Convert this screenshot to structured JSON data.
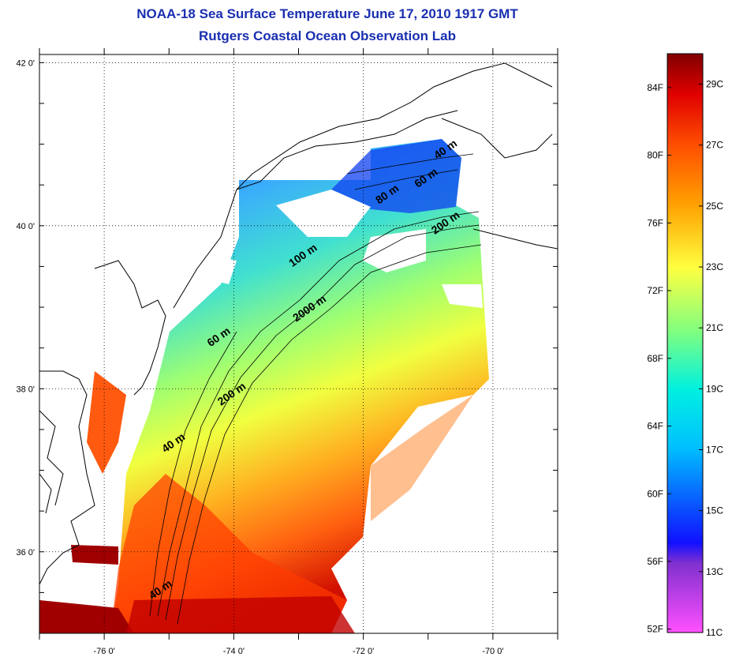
{
  "header": {
    "title": "NOAA-18 Sea Surface Temperature June 17, 2010 1917 GMT",
    "subtitle": "Rutgers Coastal Ocean Observation Lab"
  },
  "map": {
    "lat_ticks": [
      {
        "value": 42,
        "label": "42 0'"
      },
      {
        "value": 40,
        "label": "40 0'"
      },
      {
        "value": 38,
        "label": "38 0'"
      },
      {
        "value": 36,
        "label": "36 0'"
      }
    ],
    "lon_ticks": [
      {
        "value": -76,
        "label": "-76 0'"
      },
      {
        "value": -74,
        "label": "-74 0'"
      },
      {
        "value": -72,
        "label": "-72 0'"
      },
      {
        "value": -70,
        "label": "-70 0'"
      }
    ],
    "lat_range": [
      35,
      42.1
    ],
    "lon_range": [
      -77,
      -69
    ],
    "isobath_labels": [
      {
        "text": "40 m",
        "lon": -70.7,
        "lat": 40.9
      },
      {
        "text": "60 m",
        "lon": -71.0,
        "lat": 40.55
      },
      {
        "text": "80 m",
        "lon": -71.6,
        "lat": 40.35
      },
      {
        "text": "200 m",
        "lon": -70.7,
        "lat": 40.0
      },
      {
        "text": "100 m",
        "lon": -72.9,
        "lat": 39.6
      },
      {
        "text": "2000 m",
        "lon": -72.8,
        "lat": 38.95
      },
      {
        "text": "60 m",
        "lon": -74.2,
        "lat": 38.6
      },
      {
        "text": "200 m",
        "lon": -74.0,
        "lat": 37.9
      },
      {
        "text": "40 m",
        "lon": -74.9,
        "lat": 37.3
      },
      {
        "text": "40 m",
        "lon": -75.1,
        "lat": 35.5
      }
    ]
  },
  "colorbar": {
    "fahrenheit_labels": [
      "84F",
      "80F",
      "76F",
      "72F",
      "68F",
      "64F",
      "60F",
      "56F",
      "52F"
    ],
    "celsius_labels": [
      "29C",
      "27C",
      "25C",
      "23C",
      "21C",
      "19C",
      "17C",
      "15C",
      "13C",
      "11C"
    ],
    "fahrenheit_values": [
      84,
      80,
      76,
      72,
      68,
      64,
      60,
      56,
      52
    ],
    "celsius_values": [
      29,
      27,
      25,
      23,
      21,
      19,
      17,
      15,
      13,
      11
    ],
    "range_c": [
      11,
      30
    ],
    "colors": {
      "c11": "#ff50ff",
      "c13": "#8030d0",
      "c14": "#1010ff",
      "c17": "#00c0ff",
      "c19": "#00f0e0",
      "c21": "#80ff80",
      "c23": "#ffff40",
      "c25": "#ffa000",
      "c27": "#ff5000",
      "c29": "#e00000",
      "c30": "#800000"
    }
  }
}
